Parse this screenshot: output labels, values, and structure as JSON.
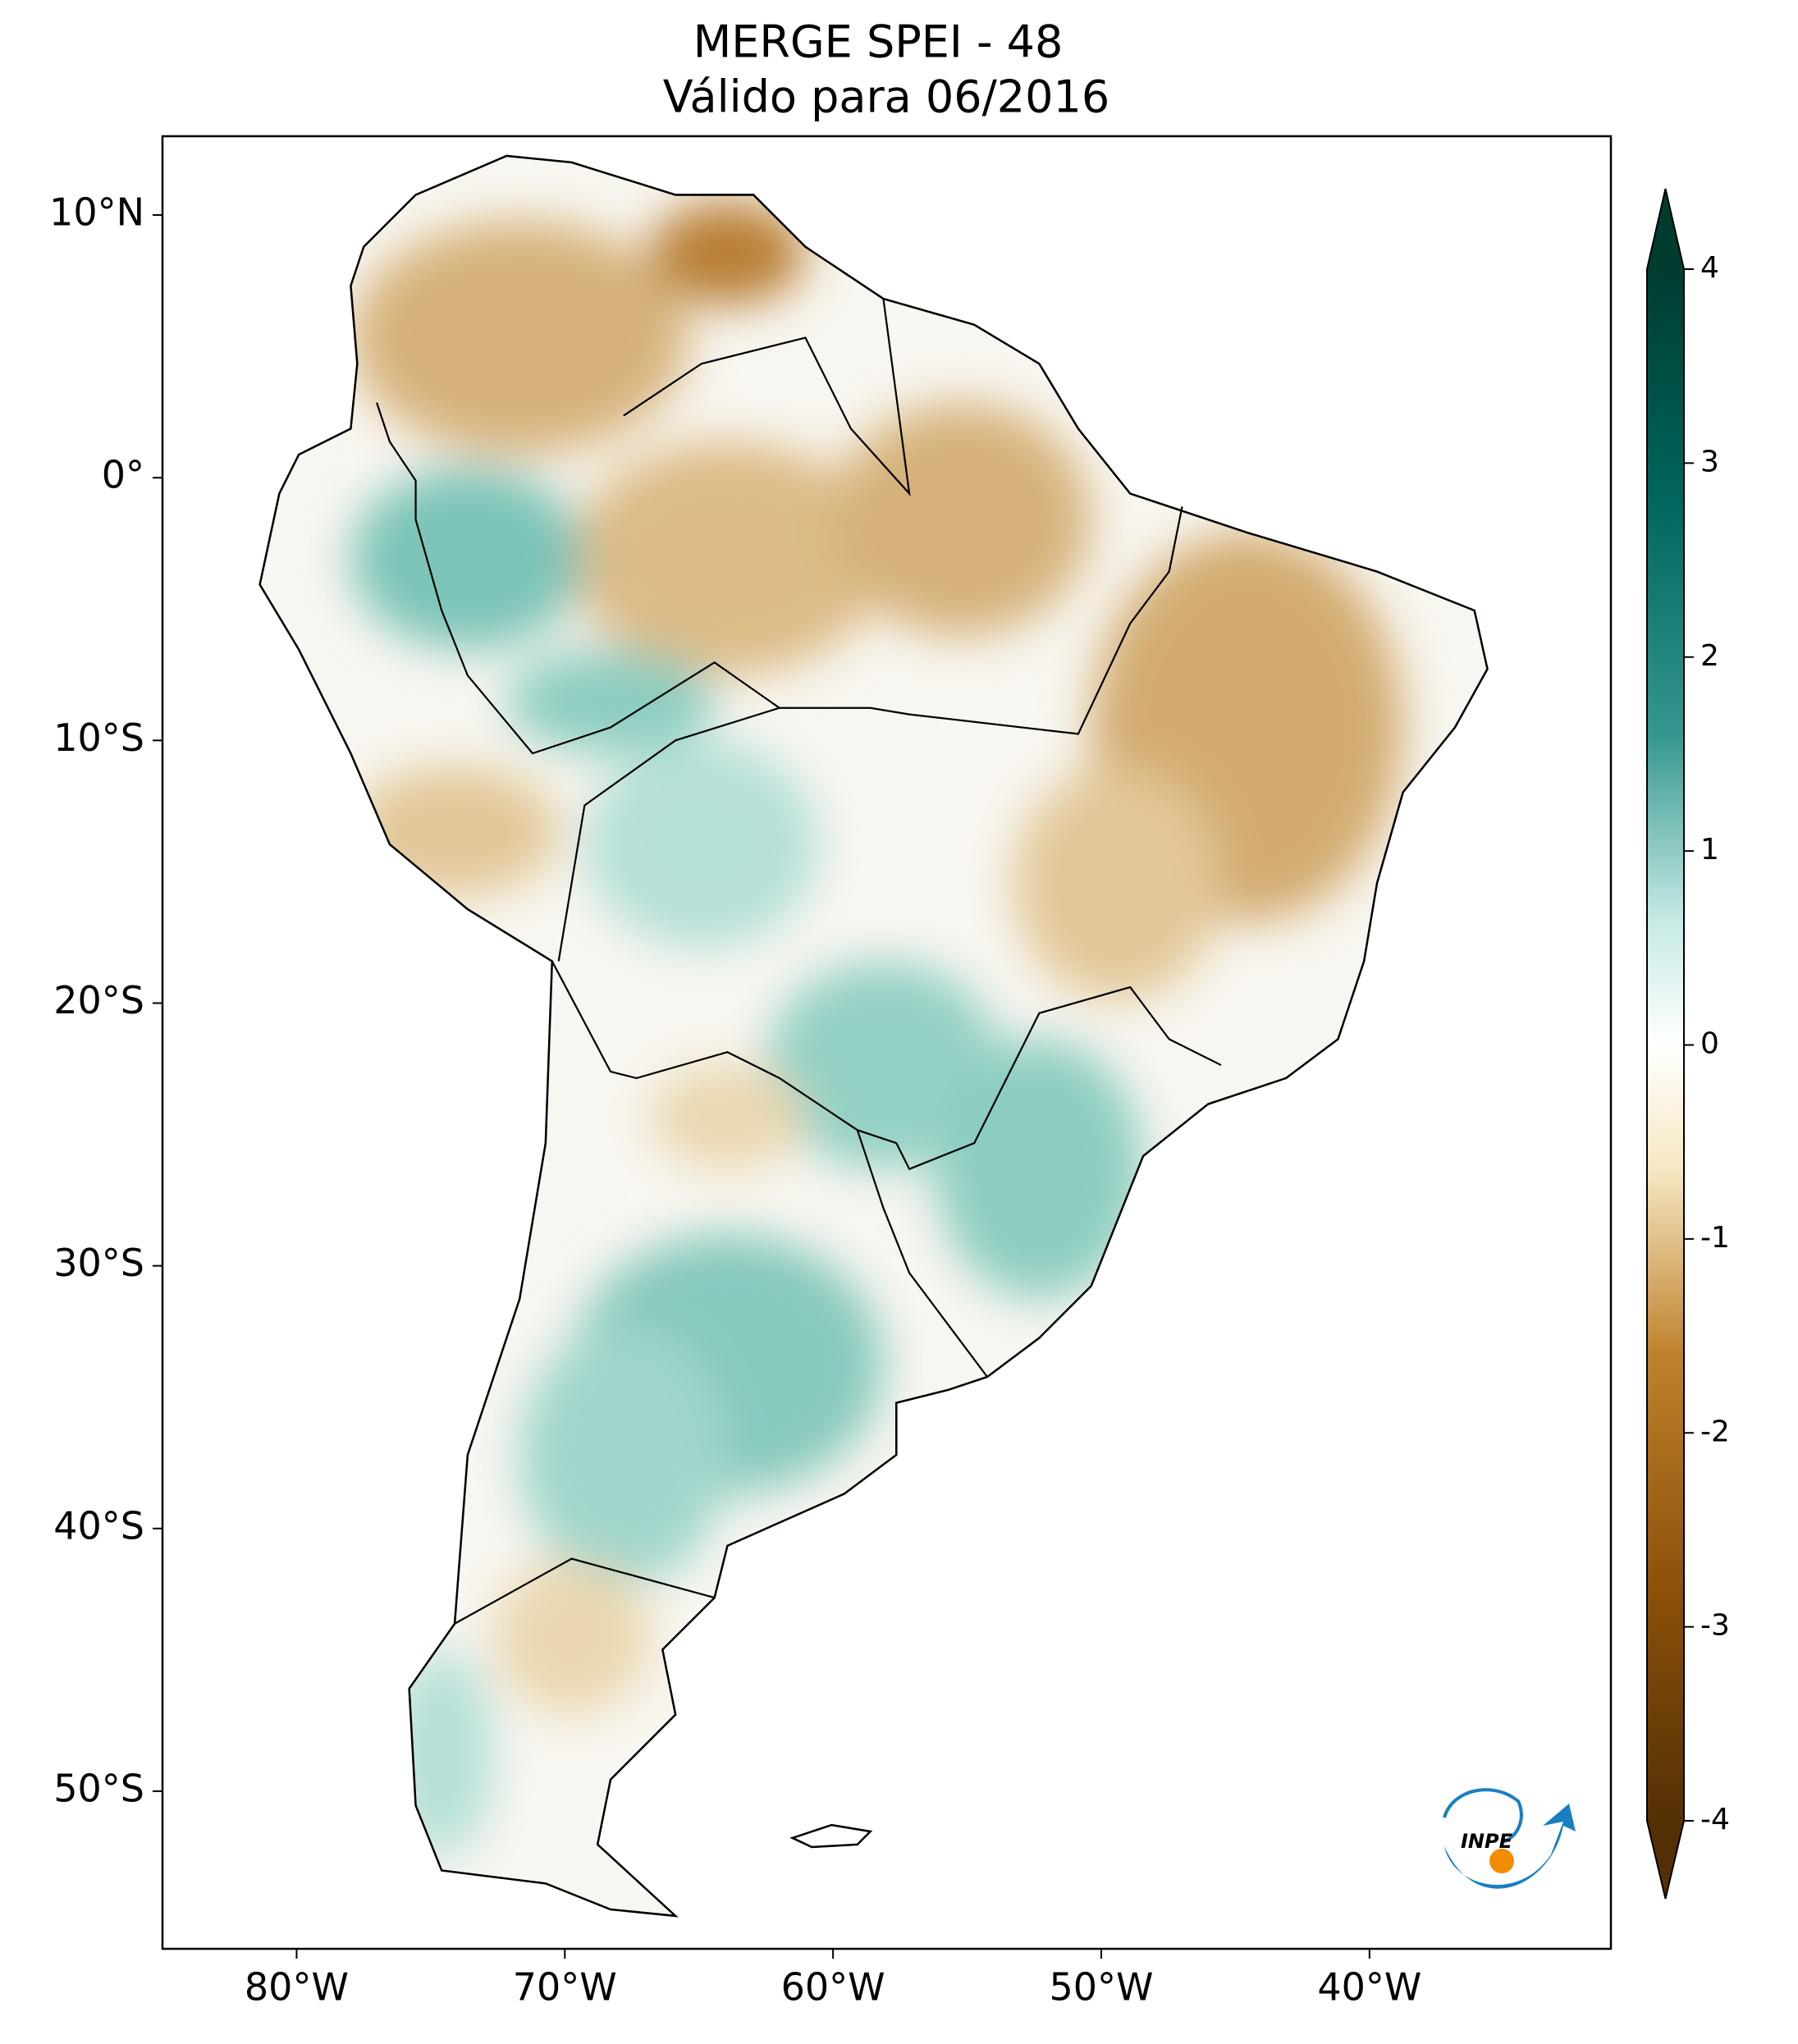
{
  "chart_data": {
    "type": "map",
    "title": "MERGE   SPEI - 48",
    "subtitle": "Válido para 06/2016",
    "xlim": [
      -85,
      -31
    ],
    "ylim": [
      -56,
      13
    ],
    "xticks": [
      {
        "value": -80,
        "label": "80°W"
      },
      {
        "value": -70,
        "label": "70°W"
      },
      {
        "value": -60,
        "label": "60°W"
      },
      {
        "value": -50,
        "label": "50°W"
      },
      {
        "value": -40,
        "label": "40°W"
      }
    ],
    "yticks": [
      {
        "value": 10,
        "label": "10°N"
      },
      {
        "value": 0,
        "label": "0°"
      },
      {
        "value": -10,
        "label": "10°S"
      },
      {
        "value": -20,
        "label": "20°S"
      },
      {
        "value": -30,
        "label": "30°S"
      },
      {
        "value": -40,
        "label": "40°S"
      },
      {
        "value": -50,
        "label": "50°S"
      }
    ],
    "colorbar": {
      "lim": [
        -4,
        4
      ],
      "ticks": [
        4,
        3,
        2,
        1,
        0,
        -1,
        -2,
        -3,
        -4
      ]
    },
    "logo": "INPE"
  }
}
